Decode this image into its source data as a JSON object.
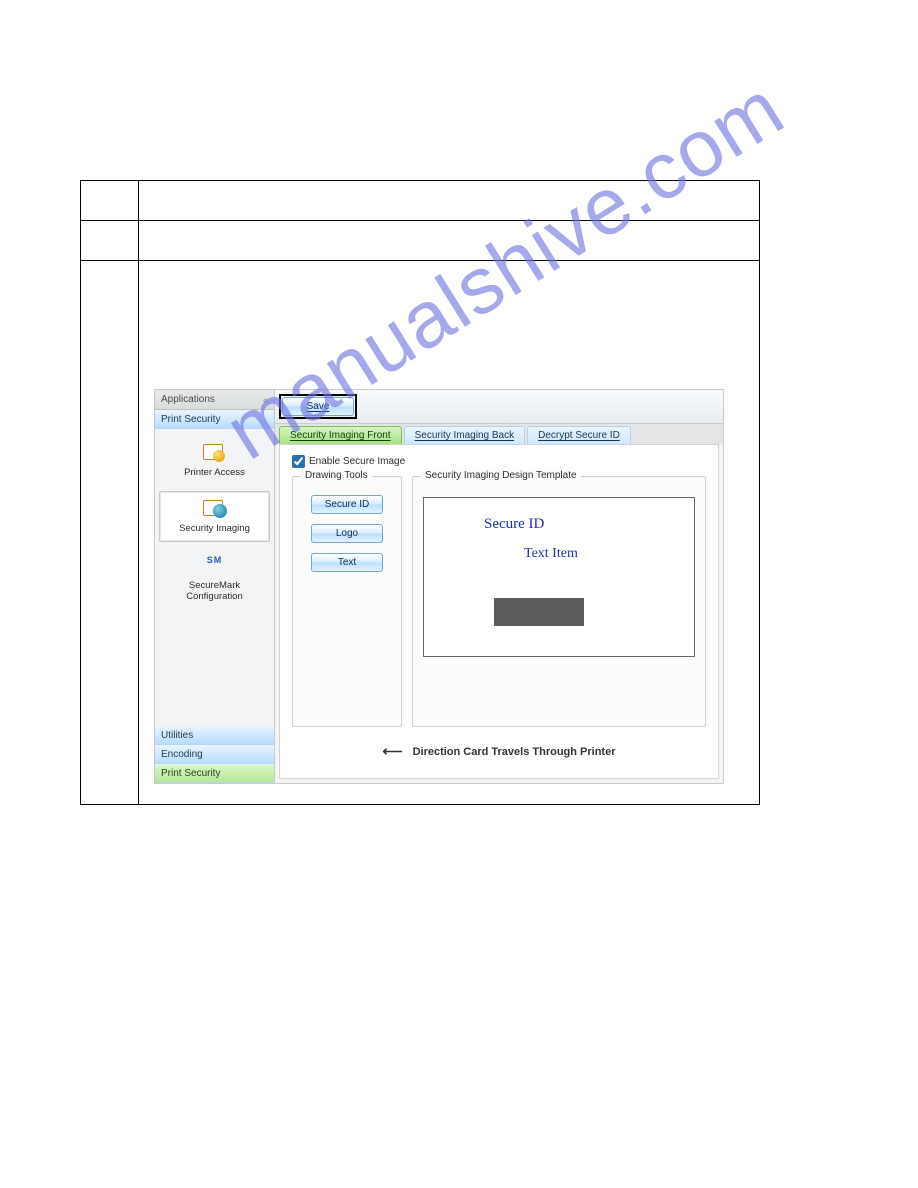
{
  "watermark": "manualshive.com",
  "sidebar": {
    "header": "Applications",
    "top_group": "Print Security",
    "items": [
      {
        "label": "Printer Access",
        "iconClass": "printer",
        "selected": false
      },
      {
        "label": "Security Imaging",
        "iconClass": "imaging",
        "selected": true
      },
      {
        "label": "SecureMark Configuration",
        "iconClass": "mark",
        "selected": false,
        "sm": "SM"
      }
    ],
    "bottom_groups": [
      {
        "label": "Utilities",
        "cls": "head-blue"
      },
      {
        "label": "Encoding",
        "cls": "head-blue"
      },
      {
        "label": "Print Security",
        "cls": "head-green"
      }
    ]
  },
  "toolbar": {
    "save": "Save"
  },
  "tabs": [
    {
      "label": "Security Imaging Front",
      "active": true
    },
    {
      "label": "Security Imaging Back",
      "active": false
    },
    {
      "label": "Decrypt Secure ID",
      "active": false
    }
  ],
  "panel": {
    "enable_label": "Enable Secure Image",
    "enable_checked": true,
    "drawing_legend": "Drawing Tools",
    "template_legend": "Security Imaging Design Template",
    "tool_buttons": [
      "Secure ID",
      "Logo",
      "Text"
    ],
    "canvas": {
      "secureid": "Secure ID",
      "textitem": "Text Item"
    },
    "direction": "Direction Card Travels Through Printer"
  },
  "colors": {
    "tab_active_bg_top": "#d6f5c6",
    "tab_active_bg_bot": "#a7e382",
    "tab_bg_top": "#eaf5ff",
    "tab_bg_bot": "#cfe8ff",
    "button_border": "#6fa7d6",
    "logo_rect": "#5b5b5b",
    "canvas_text": "#2030b0"
  }
}
